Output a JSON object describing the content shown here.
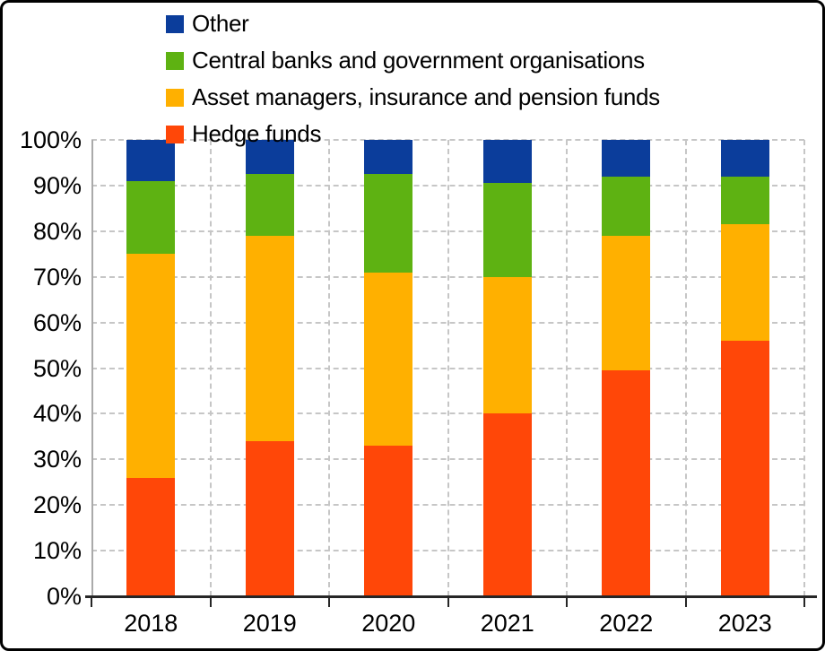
{
  "chart_data": {
    "type": "bar",
    "variant": "stacked-percent-column",
    "title": "",
    "categories": [
      "2018",
      "2019",
      "2020",
      "2021",
      "2022",
      "2023"
    ],
    "series": [
      {
        "name": "Hedge funds",
        "color": "#FF4708",
        "values": [
          26,
          34,
          33,
          40,
          49.5,
          56
        ]
      },
      {
        "name": "Asset managers, insurance and pension funds",
        "color": "#FFB000",
        "values": [
          49,
          45,
          38,
          30,
          29.5,
          25.5
        ]
      },
      {
        "name": "Central banks and government organisations",
        "color": "#5EB212",
        "values": [
          16,
          13.5,
          21.5,
          20.5,
          13,
          10.5
        ]
      },
      {
        "name": "Other",
        "color": "#0B3D9B",
        "values": [
          9,
          7.5,
          7.5,
          9.5,
          8,
          8
        ]
      }
    ],
    "legend": {
      "position": "top-left",
      "order": [
        "Other",
        "Central banks and government organisations",
        "Asset managers, insurance and pension funds",
        "Hedge funds"
      ]
    },
    "y_axis": {
      "min": 0,
      "max": 100,
      "step": 10,
      "tick_labels": [
        "0%",
        "10%",
        "20%",
        "30%",
        "40%",
        "50%",
        "60%",
        "70%",
        "80%",
        "90%",
        "100%"
      ]
    },
    "x_axis": {
      "tick_labels": [
        "2018",
        "2019",
        "2020",
        "2021",
        "2022",
        "2023"
      ]
    },
    "grid": {
      "horizontal": true,
      "vertical": true,
      "style": "dashed",
      "color": "#C6C6C6"
    }
  },
  "colors": {
    "background": "#FFFFFF",
    "frame_border": "#000000",
    "x_axis_line": "#262626",
    "y_axis_line": "#AAAAAA"
  }
}
